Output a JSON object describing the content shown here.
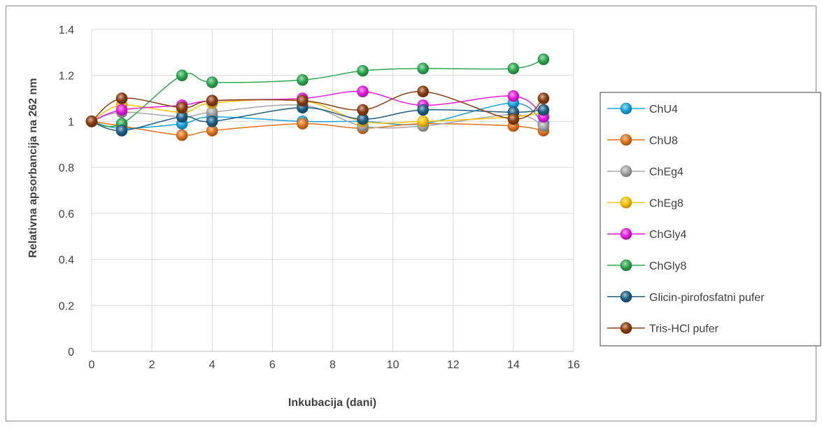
{
  "chart_data": {
    "type": "line",
    "title": "",
    "xlabel": "Inkubacija (dani)",
    "ylabel": "Relativna apsorbancija na 262 nm",
    "xlim": [
      0,
      16
    ],
    "ylim": [
      0,
      1.4
    ],
    "x_ticks": [
      "0",
      "2",
      "4",
      "6",
      "8",
      "10",
      "12",
      "14",
      "16"
    ],
    "y_ticks": [
      "0",
      "0.2",
      "0.4",
      "0.6",
      "0.8",
      "1",
      "1.2",
      "1.4"
    ],
    "grid": "vertical-and-horizontal",
    "legend_position": "right",
    "x": [
      0,
      1,
      3,
      4,
      7,
      9,
      11,
      14,
      15
    ],
    "series": [
      {
        "name": "ChU4",
        "color": "#1BA3DD",
        "values": [
          1.0,
          0.97,
          0.99,
          1.02,
          1.0,
          1.0,
          0.99,
          1.08,
          0.99
        ]
      },
      {
        "name": "ChU8",
        "color": "#E2731C",
        "values": [
          1.0,
          0.98,
          0.94,
          0.96,
          0.99,
          0.97,
          0.99,
          0.98,
          0.96
        ]
      },
      {
        "name": "ChEg4",
        "color": "#A5A5A5",
        "values": [
          1.0,
          1.04,
          1.02,
          1.04,
          1.07,
          0.98,
          0.98,
          1.03,
          0.98
        ]
      },
      {
        "name": "ChEg8",
        "color": "#FFC000",
        "values": [
          1.0,
          1.07,
          1.04,
          1.08,
          1.09,
          1.0,
          1.0,
          1.02,
          1.04
        ]
      },
      {
        "name": "ChGly4",
        "color": "#E81CE0",
        "values": [
          1.0,
          1.05,
          1.07,
          1.09,
          1.1,
          1.13,
          1.07,
          1.11,
          1.02
        ]
      },
      {
        "name": "ChGly8",
        "color": "#2EA84F",
        "values": [
          1.0,
          0.99,
          1.2,
          1.17,
          1.18,
          1.22,
          1.23,
          1.23,
          1.27
        ]
      },
      {
        "name": "Glicin-pirofosfatni pufer",
        "color": "#1F5F84",
        "values": [
          1.0,
          0.96,
          1.02,
          1.0,
          1.06,
          1.01,
          1.05,
          1.04,
          1.05
        ]
      },
      {
        "name": "Tris-HCl pufer",
        "color": "#8B3E10",
        "values": [
          1.0,
          1.1,
          1.06,
          1.09,
          1.09,
          1.05,
          1.13,
          1.01,
          1.1
        ]
      }
    ]
  }
}
